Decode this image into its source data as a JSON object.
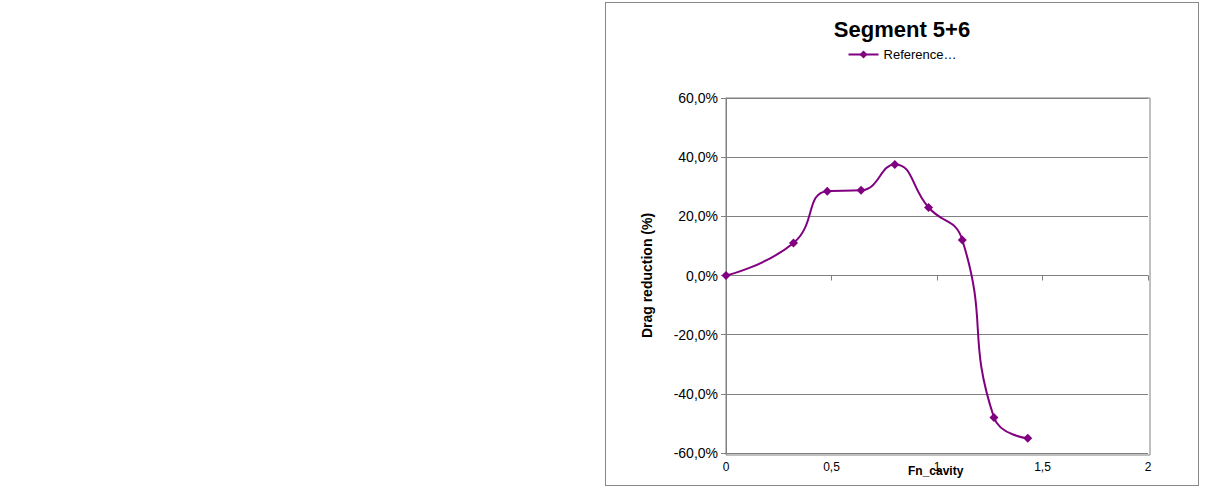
{
  "chart_data": {
    "type": "line",
    "title": "Segment 5+6",
    "x_label": "Fn_cavity",
    "y_label": "Drag reduction (%)",
    "series": [
      {
        "name": "Reference…",
        "color": "#800080",
        "marker": "diamond",
        "line_style": "solid",
        "x": [
          0,
          0.32,
          0.48,
          0.64,
          0.8,
          0.96,
          1.12,
          1.27,
          1.43
        ],
        "values": [
          0,
          11,
          28.5,
          28.8,
          37.5,
          23,
          12,
          -48,
          -55
        ]
      }
    ],
    "xlim": [
      0,
      2
    ],
    "xticks": [
      0,
      {
        "value": 0.5,
        "label": "0,5"
      },
      1,
      {
        "value": 1.5,
        "label": "1,5"
      },
      2
    ],
    "ylim": [
      -60,
      60
    ],
    "yticks": [
      {
        "value": -60,
        "label": "-60,0%"
      },
      {
        "value": -40,
        "label": "-40,0%"
      },
      {
        "value": -20,
        "label": "-20,0%"
      },
      {
        "value": 0,
        "label": "0,0%"
      },
      {
        "value": 20,
        "label": "20,0%"
      },
      {
        "value": 40,
        "label": "40,0%"
      },
      {
        "value": 60,
        "label": "60,0%"
      }
    ],
    "grid": true,
    "legend": "top"
  }
}
